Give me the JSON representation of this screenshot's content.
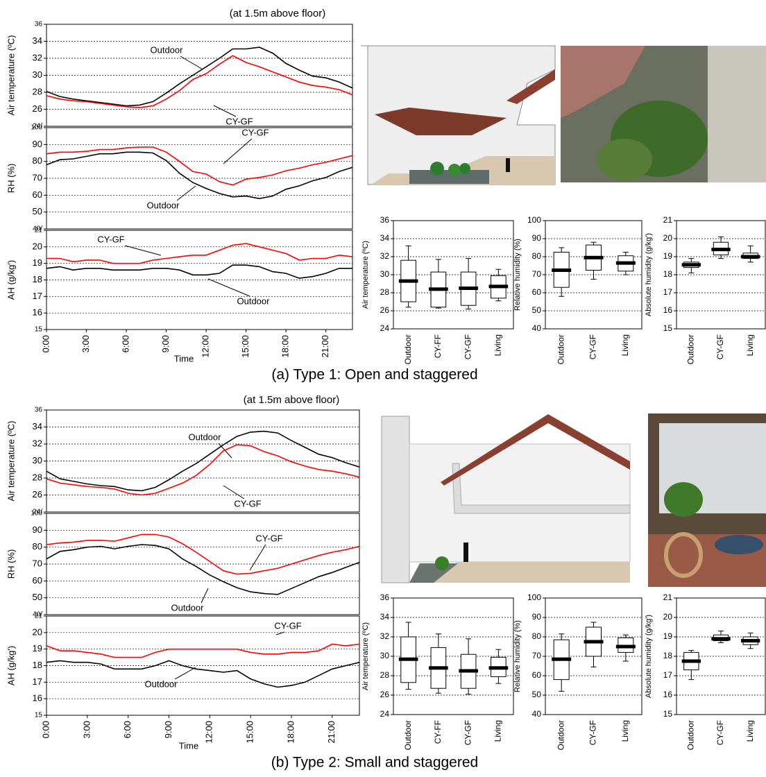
{
  "captions": [
    "(a) Type 1: Open and staggered",
    "(b)  Type 2: Small and staggered"
  ],
  "chart_data": [
    {
      "type": "line",
      "title": "(at 1.5m above floor)",
      "ylabel": "Air temperature (ºC)",
      "x": [
        0,
        1,
        2,
        3,
        4,
        5,
        6,
        7,
        8,
        9,
        10,
        11,
        12,
        13,
        14,
        15,
        16,
        17,
        18,
        19,
        20,
        21,
        22,
        23
      ],
      "xlim": [
        0,
        23
      ],
      "ylim": [
        24,
        36
      ],
      "yticks": [
        {
          "value": 24,
          "label": "24/"
        },
        26,
        28,
        30,
        32,
        34,
        36
      ],
      "grid": true,
      "series": [
        {
          "name": "Outdoor",
          "color": "#000000",
          "values": [
            28.1,
            27.5,
            27.2,
            27.0,
            26.8,
            26.6,
            26.4,
            26.5,
            26.9,
            27.9,
            29.0,
            30.0,
            31.0,
            32.0,
            33.1,
            33.1,
            33.3,
            32.6,
            31.4,
            30.6,
            29.9,
            29.7,
            29.2,
            28.5
          ]
        },
        {
          "name": "CY-GF",
          "color": "#ff0000",
          "values": [
            27.6,
            27.2,
            27.0,
            26.9,
            26.7,
            26.5,
            26.3,
            26.2,
            26.4,
            27.2,
            28.2,
            29.5,
            30.2,
            31.3,
            32.3,
            31.5,
            31.0,
            30.4,
            29.8,
            29.2,
            28.8,
            28.6,
            28.3,
            27.7
          ]
        }
      ]
    },
    {
      "type": "line",
      "ylabel": "RH (%)",
      "x": [
        0,
        1,
        2,
        3,
        4,
        5,
        6,
        7,
        8,
        9,
        10,
        11,
        12,
        13,
        14,
        15,
        16,
        17,
        18,
        19,
        20,
        21,
        22,
        23
      ],
      "xlim": [
        0,
        23
      ],
      "ylim": [
        40,
        100
      ],
      "yticks": [
        {
          "value": 40,
          "label": "40/"
        },
        50,
        60,
        70,
        80,
        90,
        100
      ],
      "grid": true,
      "series": [
        {
          "name": "Outdoor",
          "color": "#000000",
          "values": [
            78,
            81,
            81.5,
            83,
            84.5,
            84.5,
            85.5,
            85.5,
            85,
            80.5,
            73,
            67.5,
            64,
            61,
            59,
            59.5,
            58,
            59.5,
            63.5,
            65.5,
            68.5,
            70.5,
            74,
            76.5
          ]
        },
        {
          "name": "CY-GF",
          "color": "#ff0000",
          "values": [
            84.5,
            85.5,
            85.5,
            86,
            87,
            87,
            88,
            88.5,
            88.5,
            85.5,
            80,
            74,
            72.5,
            68,
            66,
            69.5,
            70.5,
            72,
            74.5,
            76,
            78,
            79.5,
            81.5,
            83.5
          ]
        }
      ]
    },
    {
      "type": "line",
      "ylabel": "AH (g/kg')",
      "xlabel": "Time",
      "x": [
        0,
        1,
        2,
        3,
        4,
        5,
        6,
        7,
        8,
        9,
        10,
        11,
        12,
        13,
        14,
        15,
        16,
        17,
        18,
        19,
        20,
        21,
        22,
        23
      ],
      "xlim": [
        0,
        23
      ],
      "xticks": [
        {
          "value": 0,
          "label": "0:00"
        },
        {
          "value": 3,
          "label": "3:00"
        },
        {
          "value": 6,
          "label": "6:00"
        },
        {
          "value": 9,
          "label": "9:00"
        },
        {
          "value": 12,
          "label": "12:00"
        },
        {
          "value": 15,
          "label": "15:00"
        },
        {
          "value": 18,
          "label": "18:00"
        },
        {
          "value": 21,
          "label": "21:00"
        }
      ],
      "ylim": [
        15,
        21
      ],
      "yticks": [
        15,
        16,
        17,
        18,
        19,
        20,
        21
      ],
      "grid": true,
      "series": [
        {
          "name": "Outdoor",
          "color": "#000000",
          "values": [
            18.7,
            18.8,
            18.6,
            18.7,
            18.7,
            18.6,
            18.6,
            18.6,
            18.7,
            18.7,
            18.6,
            18.3,
            18.3,
            18.4,
            18.9,
            18.9,
            18.8,
            18.5,
            18.4,
            18.1,
            18.2,
            18.4,
            18.7,
            18.7
          ]
        },
        {
          "name": "CY-GF",
          "color": "#ff0000",
          "values": [
            19.3,
            19.3,
            19.1,
            19.2,
            19.2,
            19.0,
            19.0,
            19.0,
            19.2,
            19.3,
            19.4,
            19.5,
            19.5,
            19.8,
            20.1,
            20.2,
            20.0,
            19.8,
            19.6,
            19.2,
            19.3,
            19.3,
            19.5,
            19.4
          ]
        }
      ]
    },
    {
      "type": "box",
      "ylabel": "Air temperature (ºC)",
      "categories": [
        "Outdoor",
        "CY-FF",
        "CY-GF",
        "Living"
      ],
      "ylim": [
        24,
        36
      ],
      "yticks": [
        24,
        26,
        28,
        30,
        32,
        34,
        36
      ],
      "grid": true,
      "stats": [
        {
          "min": 26.4,
          "q1": 27.0,
          "median": 29.3,
          "q3": 31.6,
          "max": 33.2
        },
        {
          "min": 26.3,
          "q1": 26.4,
          "median": 28.4,
          "q3": 30.3,
          "max": 31.7
        },
        {
          "min": 26.2,
          "q1": 26.6,
          "median": 28.5,
          "q3": 30.3,
          "max": 31.8
        },
        {
          "min": 27.1,
          "q1": 27.4,
          "median": 28.7,
          "q3": 29.9,
          "max": 30.6
        }
      ]
    },
    {
      "type": "box",
      "ylabel": "Relative humidity (%)",
      "categories": [
        "Outdoor",
        "CY-GF",
        "Living"
      ],
      "ylim": [
        40,
        100
      ],
      "yticks": [
        40,
        50,
        60,
        70,
        80,
        90,
        100
      ],
      "grid": true,
      "stats": [
        {
          "min": 58,
          "q1": 63,
          "median": 72.5,
          "q3": 82.5,
          "max": 85
        },
        {
          "min": 67.5,
          "q1": 72.5,
          "median": 79.5,
          "q3": 86.5,
          "max": 88
        },
        {
          "min": 70,
          "q1": 72,
          "median": 76.5,
          "q3": 80.5,
          "max": 82.5
        }
      ]
    },
    {
      "type": "box",
      "ylabel": "Absolute humidity (g/kg')",
      "categories": [
        "Outdoor",
        "CY-GF",
        "Living"
      ],
      "ylim": [
        15,
        21
      ],
      "yticks": [
        15,
        16,
        17,
        18,
        19,
        20,
        21
      ],
      "grid": true,
      "stats": [
        {
          "min": 18.1,
          "q1": 18.4,
          "median": 18.55,
          "q3": 18.7,
          "max": 18.9
        },
        {
          "min": 18.9,
          "q1": 19.1,
          "median": 19.4,
          "q3": 19.8,
          "max": 20.1
        },
        {
          "min": 18.7,
          "q1": 18.9,
          "median": 19.0,
          "q3": 19.2,
          "max": 19.6
        }
      ]
    },
    {
      "type": "line",
      "title": "(at 1.5m above floor)",
      "ylabel": "Air temperature (ºC)",
      "x": [
        0,
        1,
        2,
        3,
        4,
        5,
        6,
        7,
        8,
        9,
        10,
        11,
        12,
        13,
        14,
        15,
        16,
        17,
        18,
        19,
        20,
        21,
        22,
        23
      ],
      "xlim": [
        0,
        23
      ],
      "ylim": [
        24,
        36
      ],
      "yticks": [
        {
          "value": 24,
          "label": "24/"
        },
        26,
        28,
        30,
        32,
        34,
        36
      ],
      "grid": true,
      "series": [
        {
          "name": "Outdoor",
          "color": "#000000",
          "values": [
            28.8,
            27.9,
            27.6,
            27.3,
            27.1,
            27.0,
            26.6,
            26.5,
            26.9,
            27.8,
            28.8,
            29.7,
            30.8,
            31.9,
            32.9,
            33.4,
            33.5,
            33.3,
            32.4,
            31.6,
            30.8,
            30.4,
            29.8,
            29.3
          ]
        },
        {
          "name": "CY-GF",
          "color": "#ff0000",
          "values": [
            27.9,
            27.4,
            27.2,
            27.0,
            26.9,
            26.7,
            26.2,
            26.0,
            26.2,
            26.8,
            27.4,
            28.3,
            29.6,
            31.2,
            31.9,
            31.8,
            31.1,
            30.6,
            29.9,
            29.4,
            29.0,
            28.8,
            28.5,
            28.1
          ]
        }
      ]
    },
    {
      "type": "line",
      "ylabel": "RH (%)",
      "x": [
        0,
        1,
        2,
        3,
        4,
        5,
        6,
        7,
        8,
        9,
        10,
        11,
        12,
        13,
        14,
        15,
        16,
        17,
        18,
        19,
        20,
        21,
        22,
        23
      ],
      "xlim": [
        0,
        23
      ],
      "ylim": [
        40,
        100
      ],
      "yticks": [
        {
          "value": 40,
          "label": "40/"
        },
        50,
        60,
        70,
        80,
        90,
        100
      ],
      "grid": true,
      "series": [
        {
          "name": "Outdoor",
          "color": "#000000",
          "values": [
            73,
            77.5,
            78.5,
            80,
            80.5,
            79,
            80.5,
            81.5,
            81,
            79,
            73,
            68.5,
            63.5,
            59.5,
            56,
            53.5,
            52.5,
            52,
            55.5,
            59,
            62.5,
            65,
            68,
            71
          ]
        },
        {
          "name": "CY-GF",
          "color": "#ff0000",
          "values": [
            81.5,
            82.5,
            83,
            84,
            84,
            83.5,
            85.5,
            87.5,
            87.5,
            86,
            82,
            77,
            71.5,
            66,
            64,
            64.5,
            66,
            67.5,
            70,
            72.5,
            75,
            77,
            78.5,
            80.5
          ]
        }
      ]
    },
    {
      "type": "line",
      "ylabel": "AH (g/kg')",
      "xlabel": "Time",
      "x": [
        0,
        1,
        2,
        3,
        4,
        5,
        6,
        7,
        8,
        9,
        10,
        11,
        12,
        13,
        14,
        15,
        16,
        17,
        18,
        19,
        20,
        21,
        22,
        23
      ],
      "xlim": [
        0,
        23
      ],
      "xticks": [
        {
          "value": 0,
          "label": "0:00"
        },
        {
          "value": 3,
          "label": "3:00"
        },
        {
          "value": 6,
          "label": "6:00"
        },
        {
          "value": 9,
          "label": "9:00"
        },
        {
          "value": 12,
          "label": "12:00"
        },
        {
          "value": 15,
          "label": "15:00"
        },
        {
          "value": 18,
          "label": "18:00"
        },
        {
          "value": 21,
          "label": "21:00"
        }
      ],
      "ylim": [
        15,
        21
      ],
      "yticks": [
        15,
        16,
        17,
        18,
        19,
        20,
        21
      ],
      "grid": true,
      "series": [
        {
          "name": "Outdoor",
          "color": "#000000",
          "values": [
            18.2,
            18.3,
            18.2,
            18.2,
            18.1,
            17.8,
            17.8,
            17.8,
            18.0,
            18.3,
            18.0,
            17.8,
            17.7,
            17.6,
            17.7,
            17.2,
            16.9,
            16.7,
            16.8,
            17.0,
            17.4,
            17.8,
            18.0,
            18.2
          ]
        },
        {
          "name": "CY-GF",
          "color": "#ff0000",
          "values": [
            19.2,
            18.9,
            18.9,
            18.8,
            18.7,
            18.5,
            18.5,
            18.5,
            18.8,
            19.0,
            19.0,
            19.0,
            19.0,
            19.0,
            19.0,
            18.8,
            18.7,
            18.7,
            18.8,
            18.8,
            18.9,
            19.3,
            19.2,
            19.3
          ]
        }
      ]
    },
    {
      "type": "box",
      "ylabel": "Air temperature (ºC)",
      "categories": [
        "Outdoor",
        "CY-FF",
        "CY-GF",
        "Living"
      ],
      "ylim": [
        24,
        36
      ],
      "yticks": [
        24,
        26,
        28,
        30,
        32,
        34,
        36
      ],
      "grid": true,
      "stats": [
        {
          "min": 26.6,
          "q1": 27.3,
          "median": 29.7,
          "q3": 32.0,
          "max": 33.5
        },
        {
          "min": 26.2,
          "q1": 26.7,
          "median": 28.8,
          "q3": 30.9,
          "max": 32.3
        },
        {
          "min": 26.1,
          "q1": 26.7,
          "median": 28.5,
          "q3": 30.2,
          "max": 31.8
        },
        {
          "min": 27.2,
          "q1": 27.9,
          "median": 28.8,
          "q3": 29.9,
          "max": 30.7
        }
      ]
    },
    {
      "type": "box",
      "ylabel": "Relative humidity (%)",
      "categories": [
        "Outdoor",
        "CY-GF",
        "Living"
      ],
      "ylim": [
        40,
        100
      ],
      "yticks": [
        40,
        50,
        60,
        70,
        80,
        90,
        100
      ],
      "grid": true,
      "stats": [
        {
          "min": 52,
          "q1": 58,
          "median": 68.5,
          "q3": 78.5,
          "max": 81.5
        },
        {
          "min": 64.5,
          "q1": 70,
          "median": 77.5,
          "q3": 85,
          "max": 87.5
        },
        {
          "min": 67.5,
          "q1": 72,
          "median": 75,
          "q3": 79.5,
          "max": 81
        }
      ]
    },
    {
      "type": "box",
      "ylabel": "Absolute humidity (g/kg')",
      "categories": [
        "Outdoor",
        "CY-GF",
        "Living"
      ],
      "ylim": [
        15,
        21
      ],
      "yticks": [
        15,
        16,
        17,
        18,
        19,
        20,
        21
      ],
      "grid": true,
      "stats": [
        {
          "min": 16.8,
          "q1": 17.3,
          "median": 17.75,
          "q3": 18.2,
          "max": 18.3
        },
        {
          "min": 18.7,
          "q1": 18.8,
          "median": 18.9,
          "q3": 19.1,
          "max": 19.3
        },
        {
          "min": 18.4,
          "q1": 18.6,
          "median": 18.8,
          "q3": 19.0,
          "max": 19.2
        }
      ]
    }
  ]
}
